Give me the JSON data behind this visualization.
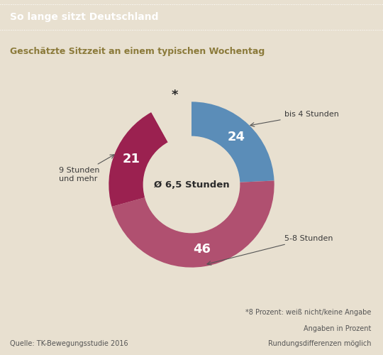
{
  "title": "So lange sitzt Deutschland",
  "subtitle": "Geschätzte Sitzzeit an einem typischen Wochentag",
  "center_text": "Ø 6,5 Stunden",
  "slices": [
    24,
    46,
    21,
    8
  ],
  "values_text": [
    "24",
    "46",
    "21",
    ""
  ],
  "colors": [
    "#5b8db8",
    "#b05070",
    "#9b2150",
    "#e8e0d0"
  ],
  "bg_color": "#e8e0d0",
  "title_bg": "#9e8840",
  "title_color": "#ffffff",
  "subtitle_color": "#8b7a3a",
  "center_text_color": "#2a2a2a",
  "annotation_color": "#3a3a3a",
  "footnote_line1": "*8 Prozent: weiß nicht/keine Angabe",
  "footnote_line2": "Angaben in Prozent",
  "footnote_line3": "Rundungsdifferenzen möglich",
  "source_text": "Quelle: TK-Bewegungsstudie 2016"
}
